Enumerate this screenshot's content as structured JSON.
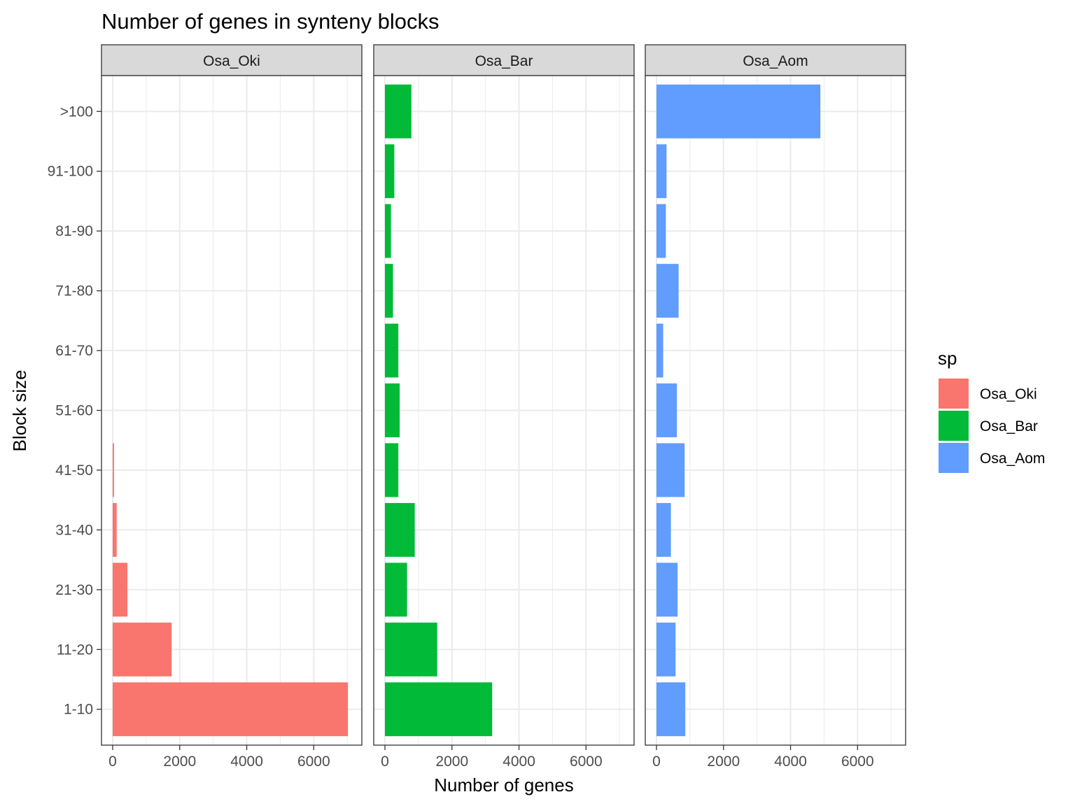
{
  "chart_data": {
    "type": "bar",
    "orientation": "horizontal",
    "title": "Number of genes in synteny blocks",
    "xlabel": "Number of genes",
    "ylabel": "Block size",
    "xlim": [
      0,
      7100
    ],
    "x_ticks": [
      0,
      2000,
      4000,
      6000
    ],
    "x_tick_labels": [
      "0",
      "2000",
      "4000",
      "6000"
    ],
    "grid": true,
    "legend_position": "right",
    "legend_title": "sp",
    "categories": [
      "1-10",
      "11-20",
      "21-30",
      "31-40",
      "41-50",
      "51-60",
      "61-70",
      "71-80",
      "81-90",
      "91-100",
      ">100"
    ],
    "series": [
      {
        "name": "Osa_Oki",
        "color": "#F8766D",
        "values": [
          7020,
          1760,
          440,
          120,
          40,
          0,
          0,
          0,
          0,
          0,
          0
        ]
      },
      {
        "name": "Osa_Bar",
        "color": "#00BA38",
        "values": [
          3200,
          1560,
          660,
          890,
          400,
          440,
          400,
          240,
          180,
          280,
          790
        ]
      },
      {
        "name": "Osa_Aom",
        "color": "#619CFF",
        "values": [
          860,
          570,
          630,
          430,
          840,
          610,
          200,
          660,
          280,
          300,
          4890
        ]
      }
    ]
  }
}
